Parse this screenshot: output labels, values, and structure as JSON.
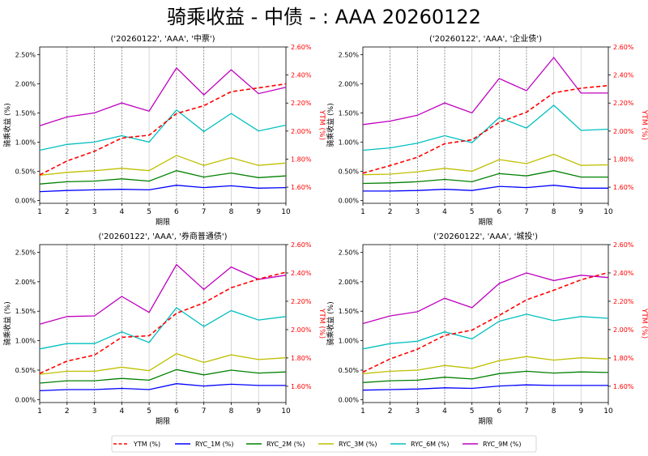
{
  "title": "骑乘收益 - 中债 - : AAA 20260122",
  "colors": {
    "YTM": "#ff0000",
    "RYC_1M": "#0000ff",
    "RYC_2M": "#008000",
    "RYC_3M": "#bfbf00",
    "RYC_6M": "#00bfbf",
    "RYC_9M": "#bf00bf"
  },
  "legend": {
    "placement": "bottom-center",
    "items": [
      "YTM (%)",
      "RYC_1M (%)",
      "RYC_2M (%)",
      "RYC_3M (%)",
      "RYC_6M (%)",
      "RYC_9M (%)"
    ]
  },
  "chart_data": [
    {
      "type": "line",
      "title": "('20260122', 'AAA', '中票')",
      "xlabel": "期限",
      "ylabel": "骑乘收益 (%)",
      "y2label": "YTM (%)",
      "x": [
        1,
        2,
        3,
        4,
        5,
        6,
        7,
        8,
        9,
        10
      ],
      "xticks": [
        "1",
        "2",
        "3",
        "4",
        "5",
        "6",
        "7",
        "8",
        "9",
        "10"
      ],
      "ylim": [
        -0.05,
        2.63
      ],
      "yticks": [
        "0.00%",
        "0.50%",
        "1.00%",
        "1.50%",
        "2.00%",
        "2.50%"
      ],
      "y2lim": [
        1.485,
        2.6
      ],
      "y2ticks": [
        "1.60%",
        "1.80%",
        "2.00%",
        "2.20%",
        "2.40%",
        "2.60%"
      ],
      "grid": "x",
      "series": [
        {
          "name": "YTM (%)",
          "axis": "right",
          "values": [
            1.687,
            1.787,
            1.856,
            1.95,
            1.971,
            2.125,
            2.181,
            2.281,
            2.308,
            2.337
          ]
        },
        {
          "name": "RYC_1M (%)",
          "axis": "left",
          "values": [
            0.15,
            0.17,
            0.18,
            0.19,
            0.18,
            0.26,
            0.22,
            0.25,
            0.21,
            0.22
          ]
        },
        {
          "name": "RYC_2M (%)",
          "axis": "left",
          "values": [
            0.28,
            0.32,
            0.33,
            0.37,
            0.33,
            0.51,
            0.4,
            0.47,
            0.39,
            0.42
          ]
        },
        {
          "name": "RYC_3M (%)",
          "axis": "left",
          "values": [
            0.43,
            0.48,
            0.51,
            0.55,
            0.51,
            0.77,
            0.6,
            0.73,
            0.6,
            0.64
          ]
        },
        {
          "name": "RYC_6M (%)",
          "axis": "left",
          "values": [
            0.86,
            0.96,
            1.0,
            1.11,
            1.0,
            1.55,
            1.18,
            1.49,
            1.19,
            1.29
          ]
        },
        {
          "name": "RYC_9M (%)",
          "axis": "left",
          "values": [
            1.28,
            1.43,
            1.5,
            1.67,
            1.53,
            2.27,
            1.81,
            2.24,
            1.83,
            1.94
          ]
        }
      ]
    },
    {
      "type": "line",
      "title": "('20260122', 'AAA', '企业债')",
      "xlabel": "期限",
      "ylabel": "骑乘收益 (%)",
      "y2label": "YTM (%)",
      "x": [
        1,
        2,
        3,
        4,
        5,
        6,
        7,
        8,
        9,
        10
      ],
      "xticks": [
        "1",
        "2",
        "3",
        "4",
        "5",
        "6",
        "7",
        "8",
        "9",
        "10"
      ],
      "ylim": [
        -0.05,
        2.63
      ],
      "yticks": [
        "0.00%",
        "0.50%",
        "1.00%",
        "1.50%",
        "2.00%",
        "2.50%"
      ],
      "y2lim": [
        1.485,
        2.6
      ],
      "y2ticks": [
        "1.60%",
        "1.80%",
        "2.00%",
        "2.20%",
        "2.40%",
        "2.60%"
      ],
      "grid": "x",
      "series": [
        {
          "name": "YTM (%)",
          "axis": "right",
          "values": [
            1.7,
            1.754,
            1.813,
            1.91,
            1.938,
            2.062,
            2.135,
            2.273,
            2.306,
            2.325
          ]
        },
        {
          "name": "RYC_1M (%)",
          "axis": "left",
          "values": [
            0.16,
            0.16,
            0.17,
            0.19,
            0.17,
            0.24,
            0.22,
            0.26,
            0.21,
            0.21
          ]
        },
        {
          "name": "RYC_2M (%)",
          "axis": "left",
          "values": [
            0.29,
            0.3,
            0.32,
            0.36,
            0.32,
            0.46,
            0.42,
            0.51,
            0.4,
            0.4
          ]
        },
        {
          "name": "RYC_3M (%)",
          "axis": "left",
          "values": [
            0.44,
            0.45,
            0.49,
            0.55,
            0.5,
            0.7,
            0.63,
            0.79,
            0.6,
            0.61
          ]
        },
        {
          "name": "RYC_6M (%)",
          "axis": "left",
          "values": [
            0.86,
            0.9,
            0.98,
            1.11,
            0.99,
            1.42,
            1.24,
            1.63,
            1.2,
            1.22
          ]
        },
        {
          "name": "RYC_9M (%)",
          "axis": "left",
          "values": [
            1.3,
            1.36,
            1.46,
            1.67,
            1.5,
            2.09,
            1.88,
            2.45,
            1.84,
            1.84
          ]
        }
      ]
    },
    {
      "type": "line",
      "title": "('20260122', 'AAA', '券商普通债')",
      "xlabel": "期限",
      "ylabel": "骑乘收益 (%)",
      "y2label": "YTM (%)",
      "x": [
        1,
        2,
        3,
        4,
        5,
        6,
        7,
        8,
        9,
        10
      ],
      "xticks": [
        "1",
        "2",
        "3",
        "4",
        "5",
        "6",
        "7",
        "8",
        "9",
        "10"
      ],
      "ylim": [
        -0.05,
        2.63
      ],
      "yticks": [
        "0.00%",
        "0.50%",
        "1.00%",
        "1.50%",
        "2.00%",
        "2.50%"
      ],
      "y2lim": [
        1.485,
        2.6
      ],
      "y2ticks": [
        "1.60%",
        "1.80%",
        "2.00%",
        "2.20%",
        "2.40%",
        "2.60%"
      ],
      "grid": "x",
      "series": [
        {
          "name": "YTM (%)",
          "axis": "right",
          "values": [
            1.69,
            1.778,
            1.82,
            1.946,
            1.957,
            2.115,
            2.189,
            2.295,
            2.357,
            2.405
          ]
        },
        {
          "name": "RYC_1M (%)",
          "axis": "left",
          "values": [
            0.15,
            0.17,
            0.17,
            0.19,
            0.17,
            0.27,
            0.23,
            0.26,
            0.24,
            0.24
          ]
        },
        {
          "name": "RYC_2M (%)",
          "axis": "left",
          "values": [
            0.28,
            0.32,
            0.32,
            0.36,
            0.33,
            0.51,
            0.42,
            0.5,
            0.45,
            0.47
          ]
        },
        {
          "name": "RYC_3M (%)",
          "axis": "left",
          "values": [
            0.43,
            0.48,
            0.48,
            0.55,
            0.49,
            0.78,
            0.63,
            0.76,
            0.68,
            0.71
          ]
        },
        {
          "name": "RYC_6M (%)",
          "axis": "left",
          "values": [
            0.86,
            0.95,
            0.95,
            1.15,
            0.97,
            1.56,
            1.24,
            1.51,
            1.35,
            1.41
          ]
        },
        {
          "name": "RYC_9M (%)",
          "axis": "left",
          "values": [
            1.28,
            1.41,
            1.42,
            1.75,
            1.48,
            2.29,
            1.87,
            2.25,
            2.04,
            2.11
          ]
        }
      ]
    },
    {
      "type": "line",
      "title": "('20260122', 'AAA', '城投')",
      "xlabel": "期限",
      "ylabel": "骑乘收益 (%)",
      "y2label": "YTM (%)",
      "x": [
        1,
        2,
        3,
        4,
        5,
        6,
        7,
        8,
        9,
        10
      ],
      "xticks": [
        "1",
        "2",
        "3",
        "4",
        "5",
        "6",
        "7",
        "8",
        "9",
        "10"
      ],
      "ylim": [
        -0.05,
        2.63
      ],
      "yticks": [
        "0.00%",
        "0.50%",
        "1.00%",
        "1.50%",
        "2.00%",
        "2.50%"
      ],
      "y2lim": [
        1.485,
        2.6
      ],
      "y2ticks": [
        "1.60%",
        "1.80%",
        "2.00%",
        "2.20%",
        "2.40%",
        "2.60%"
      ],
      "grid": "x",
      "series": [
        {
          "name": "YTM (%)",
          "axis": "right",
          "values": [
            1.7,
            1.793,
            1.861,
            1.959,
            1.996,
            2.1,
            2.21,
            2.278,
            2.351,
            2.403
          ]
        },
        {
          "name": "RYC_1M (%)",
          "axis": "left",
          "values": [
            0.16,
            0.17,
            0.18,
            0.2,
            0.19,
            0.23,
            0.25,
            0.24,
            0.24,
            0.24
          ]
        },
        {
          "name": "RYC_2M (%)",
          "axis": "left",
          "values": [
            0.29,
            0.32,
            0.33,
            0.38,
            0.35,
            0.44,
            0.48,
            0.45,
            0.47,
            0.46
          ]
        },
        {
          "name": "RYC_3M (%)",
          "axis": "left",
          "values": [
            0.44,
            0.48,
            0.5,
            0.58,
            0.53,
            0.66,
            0.73,
            0.67,
            0.71,
            0.69
          ]
        },
        {
          "name": "RYC_6M (%)",
          "axis": "left",
          "values": [
            0.86,
            0.95,
            0.99,
            1.15,
            1.03,
            1.33,
            1.45,
            1.34,
            1.41,
            1.38
          ]
        },
        {
          "name": "RYC_9M (%)",
          "axis": "left",
          "values": [
            1.29,
            1.42,
            1.49,
            1.72,
            1.56,
            1.97,
            2.15,
            2.02,
            2.11,
            2.07
          ]
        }
      ]
    }
  ]
}
